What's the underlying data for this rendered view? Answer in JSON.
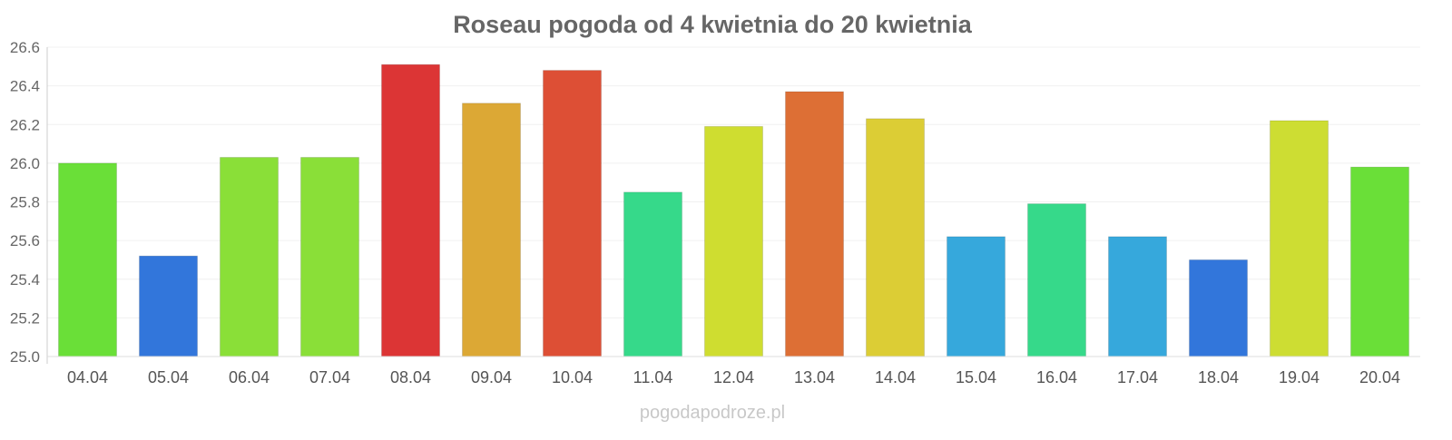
{
  "chart_data": {
    "type": "bar",
    "title": "Roseau pogoda od 4 kwietnia do 20 kwietnia",
    "xlabel": "",
    "ylabel": "",
    "ylim": [
      25.0,
      26.6
    ],
    "yticks": [
      "25.0",
      "25.2",
      "25.4",
      "25.6",
      "25.8",
      "26.0",
      "26.2",
      "26.4",
      "26.6"
    ],
    "grid": true,
    "categories": [
      "04.04",
      "05.04",
      "06.04",
      "07.04",
      "08.04",
      "09.04",
      "10.04",
      "11.04",
      "12.04",
      "13.04",
      "14.04",
      "15.04",
      "16.04",
      "17.04",
      "18.04",
      "19.04",
      "20.04"
    ],
    "values": [
      26.0,
      25.52,
      26.03,
      26.03,
      26.51,
      26.31,
      26.48,
      25.85,
      26.19,
      26.37,
      26.23,
      25.62,
      25.79,
      25.62,
      25.5,
      26.22,
      25.98
    ],
    "colors": [
      "#6adf38",
      "#3276db",
      "#8adf38",
      "#8adf38",
      "#dc3535",
      "#dca835",
      "#dd4f35",
      "#36d98a",
      "#cfdd30",
      "#dd6f35",
      "#dccd35",
      "#36a8dc",
      "#36d98a",
      "#36a8dc",
      "#3276db",
      "#cddd33",
      "#6adf38"
    ]
  },
  "watermark": "pogodapodroze.pl"
}
